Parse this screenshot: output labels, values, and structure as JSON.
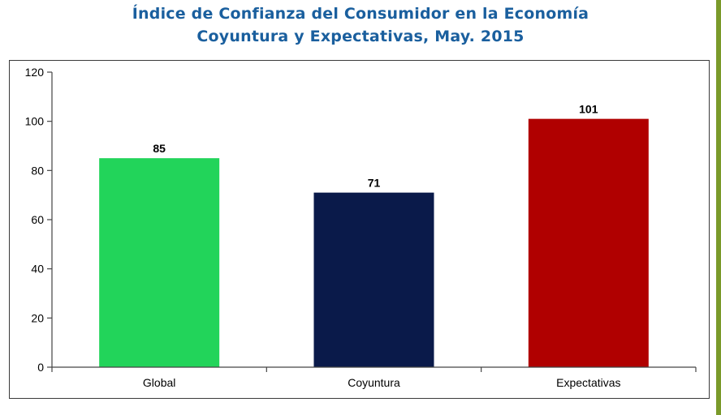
{
  "chart_data": {
    "type": "bar",
    "title": "Índice de Confianza del Consumidor en la Economía",
    "subtitle": "Coyuntura y Expectativas, May. 2015",
    "categories": [
      "Global",
      "Coyuntura",
      "Expectativas"
    ],
    "values": [
      85,
      71,
      101
    ],
    "data_labels": [
      "85",
      "71",
      "101"
    ],
    "colors": [
      "#22d45a",
      "#0a1a4a",
      "#b00000"
    ],
    "ylim": [
      0,
      120
    ],
    "yticks": [
      "0",
      "20",
      "40",
      "60",
      "80",
      "100",
      "120"
    ],
    "grid": false,
    "legend": "none"
  },
  "colors": {
    "title": "#1a5f9e",
    "accent_strip": "#7a9a2a"
  }
}
